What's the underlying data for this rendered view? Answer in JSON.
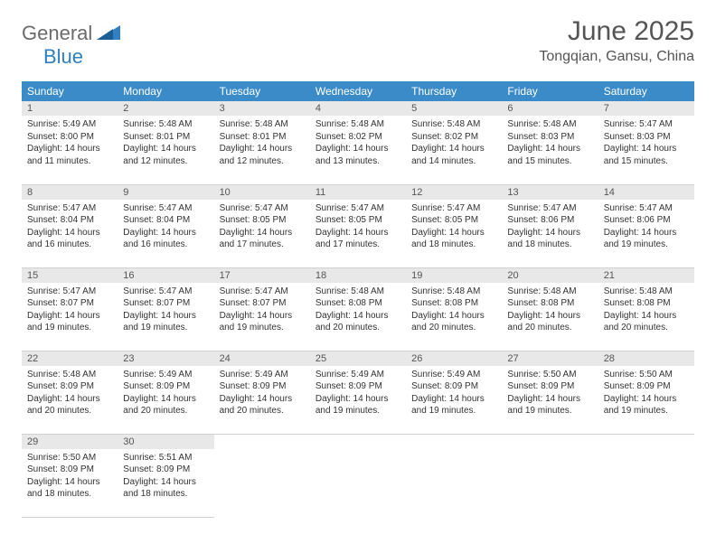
{
  "logo": {
    "word1": "General",
    "word2": "Blue"
  },
  "title": "June 2025",
  "location": "Tongqian, Gansu, China",
  "colors": {
    "header_bg": "#3b8bc9",
    "header_text": "#ffffff",
    "daynum_bg": "#e8e8e8",
    "border": "#d0d0d0",
    "body_text": "#333333",
    "logo_gray": "#6b6b6b",
    "logo_blue": "#2f7fc1"
  },
  "day_headers": [
    "Sunday",
    "Monday",
    "Tuesday",
    "Wednesday",
    "Thursday",
    "Friday",
    "Saturday"
  ],
  "first_day_index": 0,
  "days": [
    {
      "n": 1,
      "sunrise": "5:49 AM",
      "sunset": "8:00 PM",
      "daylight": "14 hours and 11 minutes."
    },
    {
      "n": 2,
      "sunrise": "5:48 AM",
      "sunset": "8:01 PM",
      "daylight": "14 hours and 12 minutes."
    },
    {
      "n": 3,
      "sunrise": "5:48 AM",
      "sunset": "8:01 PM",
      "daylight": "14 hours and 12 minutes."
    },
    {
      "n": 4,
      "sunrise": "5:48 AM",
      "sunset": "8:02 PM",
      "daylight": "14 hours and 13 minutes."
    },
    {
      "n": 5,
      "sunrise": "5:48 AM",
      "sunset": "8:02 PM",
      "daylight": "14 hours and 14 minutes."
    },
    {
      "n": 6,
      "sunrise": "5:48 AM",
      "sunset": "8:03 PM",
      "daylight": "14 hours and 15 minutes."
    },
    {
      "n": 7,
      "sunrise": "5:47 AM",
      "sunset": "8:03 PM",
      "daylight": "14 hours and 15 minutes."
    },
    {
      "n": 8,
      "sunrise": "5:47 AM",
      "sunset": "8:04 PM",
      "daylight": "14 hours and 16 minutes."
    },
    {
      "n": 9,
      "sunrise": "5:47 AM",
      "sunset": "8:04 PM",
      "daylight": "14 hours and 16 minutes."
    },
    {
      "n": 10,
      "sunrise": "5:47 AM",
      "sunset": "8:05 PM",
      "daylight": "14 hours and 17 minutes."
    },
    {
      "n": 11,
      "sunrise": "5:47 AM",
      "sunset": "8:05 PM",
      "daylight": "14 hours and 17 minutes."
    },
    {
      "n": 12,
      "sunrise": "5:47 AM",
      "sunset": "8:05 PM",
      "daylight": "14 hours and 18 minutes."
    },
    {
      "n": 13,
      "sunrise": "5:47 AM",
      "sunset": "8:06 PM",
      "daylight": "14 hours and 18 minutes."
    },
    {
      "n": 14,
      "sunrise": "5:47 AM",
      "sunset": "8:06 PM",
      "daylight": "14 hours and 19 minutes."
    },
    {
      "n": 15,
      "sunrise": "5:47 AM",
      "sunset": "8:07 PM",
      "daylight": "14 hours and 19 minutes."
    },
    {
      "n": 16,
      "sunrise": "5:47 AM",
      "sunset": "8:07 PM",
      "daylight": "14 hours and 19 minutes."
    },
    {
      "n": 17,
      "sunrise": "5:47 AM",
      "sunset": "8:07 PM",
      "daylight": "14 hours and 19 minutes."
    },
    {
      "n": 18,
      "sunrise": "5:48 AM",
      "sunset": "8:08 PM",
      "daylight": "14 hours and 20 minutes."
    },
    {
      "n": 19,
      "sunrise": "5:48 AM",
      "sunset": "8:08 PM",
      "daylight": "14 hours and 20 minutes."
    },
    {
      "n": 20,
      "sunrise": "5:48 AM",
      "sunset": "8:08 PM",
      "daylight": "14 hours and 20 minutes."
    },
    {
      "n": 21,
      "sunrise": "5:48 AM",
      "sunset": "8:08 PM",
      "daylight": "14 hours and 20 minutes."
    },
    {
      "n": 22,
      "sunrise": "5:48 AM",
      "sunset": "8:09 PM",
      "daylight": "14 hours and 20 minutes."
    },
    {
      "n": 23,
      "sunrise": "5:49 AM",
      "sunset": "8:09 PM",
      "daylight": "14 hours and 20 minutes."
    },
    {
      "n": 24,
      "sunrise": "5:49 AM",
      "sunset": "8:09 PM",
      "daylight": "14 hours and 20 minutes."
    },
    {
      "n": 25,
      "sunrise": "5:49 AM",
      "sunset": "8:09 PM",
      "daylight": "14 hours and 19 minutes."
    },
    {
      "n": 26,
      "sunrise": "5:49 AM",
      "sunset": "8:09 PM",
      "daylight": "14 hours and 19 minutes."
    },
    {
      "n": 27,
      "sunrise": "5:50 AM",
      "sunset": "8:09 PM",
      "daylight": "14 hours and 19 minutes."
    },
    {
      "n": 28,
      "sunrise": "5:50 AM",
      "sunset": "8:09 PM",
      "daylight": "14 hours and 19 minutes."
    },
    {
      "n": 29,
      "sunrise": "5:50 AM",
      "sunset": "8:09 PM",
      "daylight": "14 hours and 18 minutes."
    },
    {
      "n": 30,
      "sunrise": "5:51 AM",
      "sunset": "8:09 PM",
      "daylight": "14 hours and 18 minutes."
    }
  ],
  "labels": {
    "sunrise": "Sunrise:",
    "sunset": "Sunset:",
    "daylight": "Daylight:"
  }
}
